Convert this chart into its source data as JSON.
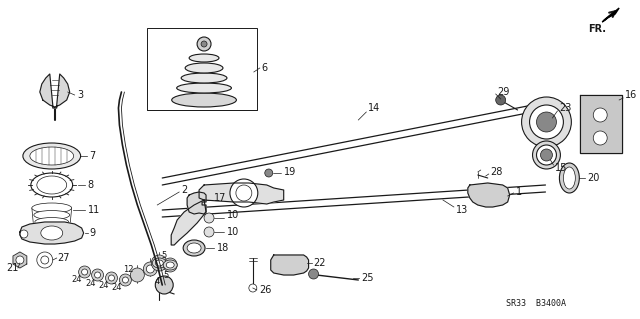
{
  "bg_color": "#ffffff",
  "line_color": "#1a1a1a",
  "fig_width": 6.4,
  "fig_height": 3.19,
  "dpi": 100,
  "part_code": "SR33  B3400A",
  "fr_text": "FR.",
  "knob_label": "3",
  "boot_label": "6"
}
